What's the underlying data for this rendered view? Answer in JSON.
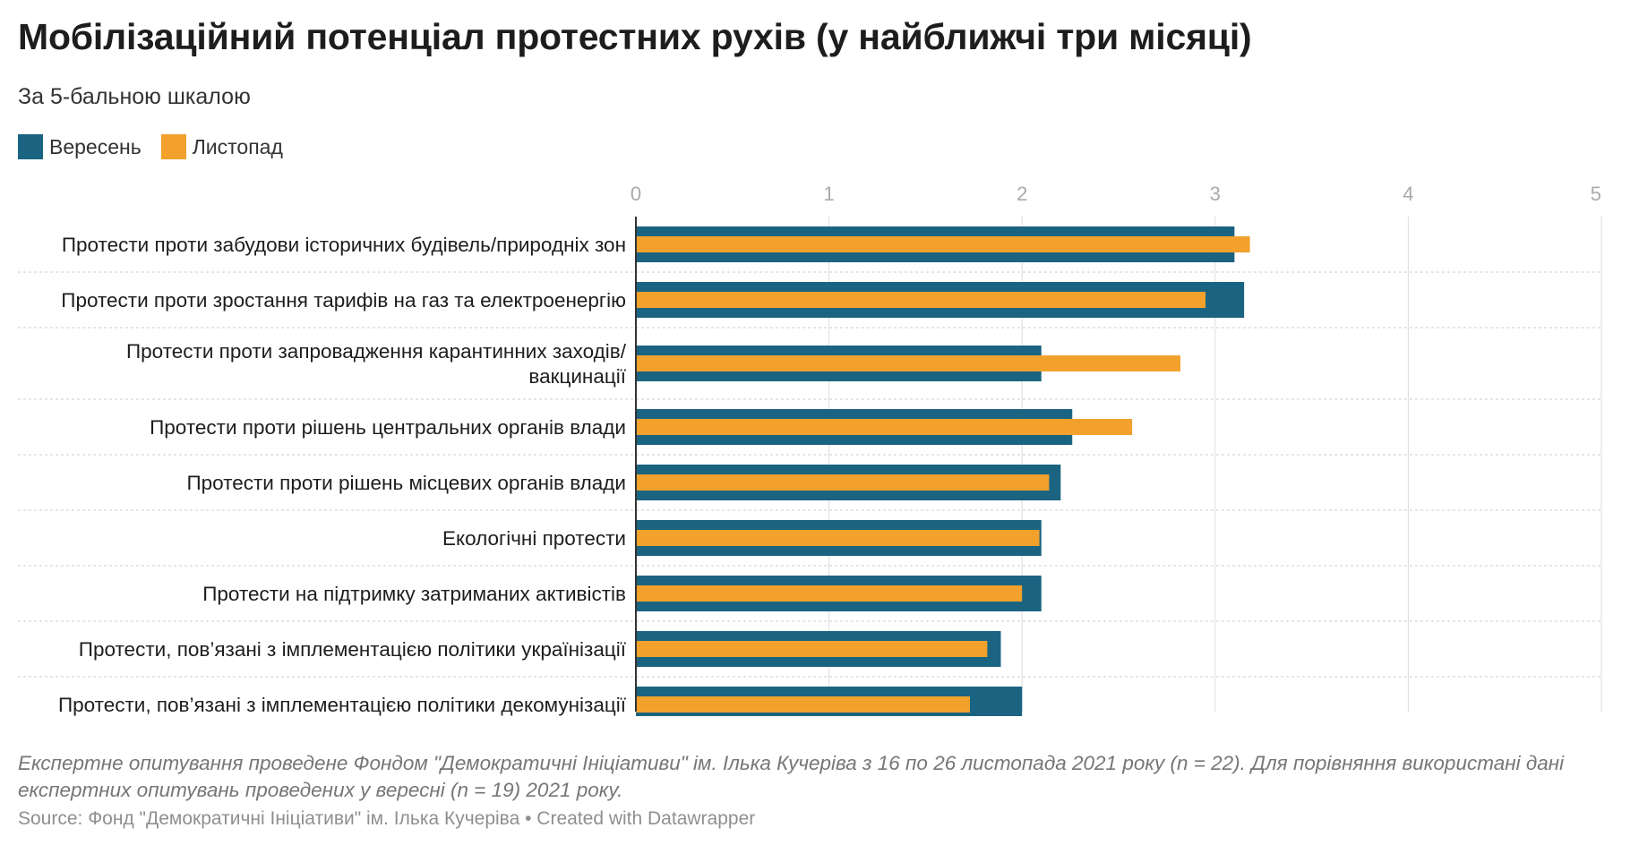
{
  "header": {
    "title": "Мобілізаційний потенціал протестних рухів (у найближчі три місяці)",
    "subtitle": "За 5-бальною шкалою"
  },
  "colors": {
    "series_september": "#1b6481",
    "series_november": "#f1a12c",
    "grid": "#dddddd",
    "separator": "#cccccc",
    "axis_text": "#aaaaaa"
  },
  "chart_data": {
    "type": "bar",
    "orientation": "horizontal",
    "title": "Мобілізаційний потенціал протестних рухів (у найближчі три місяці)",
    "subtitle": "За 5-бальною шкалою",
    "xlim": [
      0,
      5
    ],
    "ticks": [
      "0",
      "1",
      "2",
      "3",
      "4",
      "5"
    ],
    "grid": true,
    "legend_position": "top-left",
    "categories": [
      [
        "Протести проти забудови історичних будівель/природніх зон"
      ],
      [
        "Протести проти зростання тарифів на газ та електроенергію"
      ],
      [
        "Протести проти запровадження карантинних заходів/",
        "вакцинації"
      ],
      [
        "Протести проти рішень центральних органів влади"
      ],
      [
        "Протести проти рішень місцевих органів влади"
      ],
      [
        "Екологічні протести"
      ],
      [
        "Протести на підтримку затриманих активістів"
      ],
      [
        "Протести, пов’язані з імплементацією політики українізації"
      ],
      [
        "Протести, пов’язані з імплементацією політики декомунізації"
      ]
    ],
    "series": [
      {
        "name": "Вересень",
        "values": [
          3.1,
          3.15,
          2.1,
          2.26,
          2.2,
          2.1,
          2.1,
          1.89,
          2.0
        ]
      },
      {
        "name": "Листопад",
        "values": [
          3.18,
          2.95,
          2.82,
          2.57,
          2.14,
          2.09,
          2.0,
          1.82,
          1.73
        ]
      }
    ]
  },
  "footer": {
    "notes": "Експертне опитування проведене Фондом \"Демократичні Ініціативи\" ім. Ілька Кучеріва з 16 по 26 листопада 2021 року (n = 22). Для порівняння використані дані експертних опитувань проведених у вересні (n = 19) 2021 року.",
    "source": "Source: Фонд \"Демократичні Ініціативи\" ім. Ілька Кучеріва • Created with Datawrapper"
  }
}
